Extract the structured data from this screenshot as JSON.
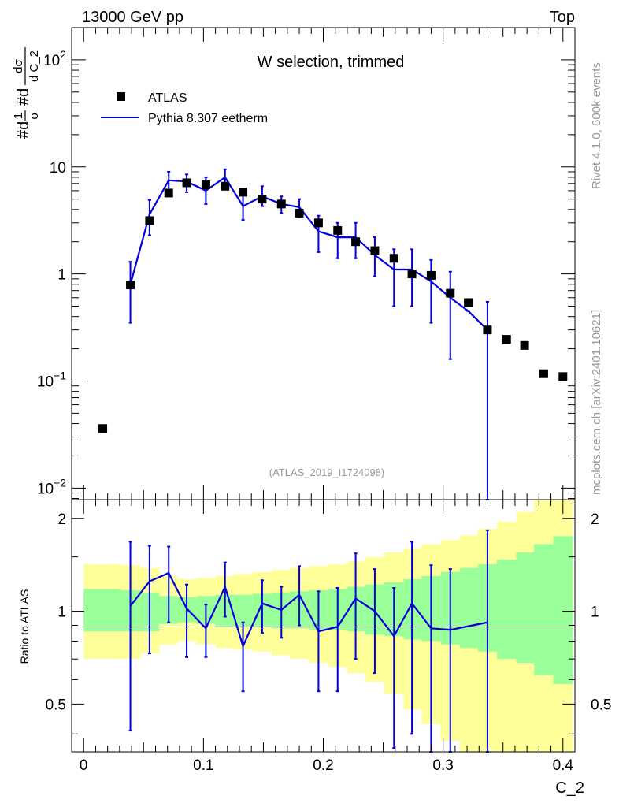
{
  "header": {
    "left": "13000 GeV pp",
    "right": "Top"
  },
  "side_labels": {
    "rivet": "Rivet 4.1.0,  600k events",
    "mcplots": "mcplots.cern.ch [arXiv:2401.10621]"
  },
  "colors": {
    "mc": "#0000dd",
    "data": "#000000",
    "band_inner": "#99ff99",
    "band_outer": "#ffff99"
  },
  "chart_data": [
    {
      "type": "scatter",
      "title": "W selection, trimmed",
      "watermark": "(ATLAS_2019_I1724098)",
      "ylabel": "#d1/σ #d dσ/d C_2",
      "yscale": "log",
      "ylim": [
        0.0078,
        200
      ],
      "xlim": [
        -0.01,
        0.41
      ],
      "yticks": [
        {
          "value": 0.01,
          "base": "10",
          "exp": "−2"
        },
        {
          "value": 0.1,
          "base": "10",
          "exp": "−1"
        },
        {
          "value": 1,
          "base": "1",
          "exp": ""
        },
        {
          "value": 10,
          "base": "10",
          "exp": ""
        },
        {
          "value": 100,
          "base": "10",
          "exp": "2"
        }
      ],
      "legend": {
        "placement": "top-left",
        "data_label": "ATLAS",
        "mc_label": "Pythia 8.307 eetherm"
      },
      "series": [
        {
          "name": "ATLAS",
          "x": [
            0.016,
            0.039,
            0.055,
            0.071,
            0.086,
            0.102,
            0.118,
            0.133,
            0.149,
            0.165,
            0.18,
            0.196,
            0.212,
            0.227,
            0.243,
            0.259,
            0.274,
            0.29,
            0.306,
            0.321,
            0.337,
            0.353,
            0.368,
            0.384,
            0.4
          ],
          "y": [
            0.036,
            0.79,
            3.15,
            5.7,
            7.1,
            6.8,
            6.6,
            5.8,
            5.0,
            4.5,
            3.7,
            3.0,
            2.55,
            2.0,
            1.65,
            1.4,
            1.0,
            0.97,
            0.66,
            0.54,
            0.3,
            0.245,
            0.215,
            0.117,
            0.11
          ]
        },
        {
          "name": "Pythia 8.307 eetherm",
          "x": [
            0.039,
            0.055,
            0.071,
            0.086,
            0.102,
            0.118,
            0.133,
            0.149,
            0.165,
            0.18,
            0.196,
            0.212,
            0.227,
            0.243,
            0.259,
            0.274,
            0.29,
            0.306,
            0.321,
            0.337
          ],
          "y": [
            0.8,
            3.6,
            7.5,
            7.3,
            6.0,
            8.0,
            4.3,
            5.3,
            4.5,
            4.2,
            2.5,
            2.2,
            2.2,
            1.5,
            1.1,
            1.1,
            0.85,
            0.6,
            0.45,
            0.3
          ],
          "err_low": [
            0.35,
            2.3,
            5.9,
            5.8,
            4.5,
            6.3,
            3.2,
            4.3,
            3.7,
            3.4,
            1.6,
            1.4,
            1.4,
            0.95,
            0.5,
            0.5,
            0.35,
            0.16,
            0.45,
            0.0001
          ],
          "err_high": [
            1.3,
            4.9,
            9.0,
            8.5,
            8.0,
            9.5,
            5.8,
            6.6,
            5.3,
            5.0,
            3.5,
            3.0,
            3.0,
            2.2,
            1.7,
            1.7,
            1.35,
            1.05,
            0.45,
            0.55
          ]
        }
      ]
    },
    {
      "type": "line",
      "ylabel": "Ratio to ATLAS",
      "xlabel": "C_2",
      "xlim": [
        -0.01,
        0.41
      ],
      "ylim": [
        0.35,
        2.3
      ],
      "yticks": [
        0.5,
        1,
        2
      ],
      "xticks": [
        0,
        0.1,
        0.2,
        0.3,
        0.4
      ],
      "bands": {
        "edges": [
          0.0,
          0.031,
          0.047,
          0.063,
          0.078,
          0.094,
          0.11,
          0.125,
          0.141,
          0.157,
          0.172,
          0.188,
          0.204,
          0.22,
          0.235,
          0.251,
          0.267,
          0.282,
          0.298,
          0.314,
          0.329,
          0.345,
          0.361,
          0.376,
          0.392,
          0.408
        ],
        "inner_low": [
          0.86,
          0.86,
          0.86,
          0.91,
          0.92,
          0.91,
          0.89,
          0.89,
          0.89,
          0.88,
          0.88,
          0.87,
          0.87,
          0.86,
          0.84,
          0.83,
          0.81,
          0.8,
          0.78,
          0.76,
          0.74,
          0.7,
          0.68,
          0.62,
          0.58
        ],
        "inner_high": [
          1.18,
          1.17,
          1.15,
          1.12,
          1.11,
          1.12,
          1.13,
          1.13,
          1.14,
          1.15,
          1.16,
          1.17,
          1.18,
          1.2,
          1.22,
          1.24,
          1.27,
          1.3,
          1.34,
          1.38,
          1.42,
          1.47,
          1.55,
          1.65,
          1.75
        ],
        "outer_low": [
          0.7,
          0.7,
          0.73,
          0.78,
          0.8,
          0.78,
          0.76,
          0.75,
          0.74,
          0.72,
          0.7,
          0.68,
          0.66,
          0.63,
          0.59,
          0.54,
          0.48,
          0.43,
          0.38,
          0.33,
          0.3,
          0.3,
          0.3,
          0.3,
          0.3
        ],
        "outer_high": [
          1.42,
          1.41,
          1.38,
          1.3,
          1.27,
          1.28,
          1.3,
          1.32,
          1.34,
          1.36,
          1.38,
          1.4,
          1.42,
          1.45,
          1.5,
          1.55,
          1.6,
          1.65,
          1.7,
          1.76,
          1.85,
          1.95,
          2.1,
          2.3,
          2.4
        ]
      },
      "series": [
        {
          "name": "Pythia 8.307 eetherm / ATLAS",
          "x": [
            0.039,
            0.055,
            0.071,
            0.086,
            0.102,
            0.118,
            0.133,
            0.149,
            0.165,
            0.18,
            0.196,
            0.212,
            0.227,
            0.243,
            0.259,
            0.274,
            0.29,
            0.306,
            0.337
          ],
          "y": [
            1.04,
            1.25,
            1.33,
            1.02,
            0.88,
            1.2,
            0.77,
            1.06,
            1.01,
            1.13,
            0.86,
            0.89,
            1.1,
            1.0,
            0.83,
            1.06,
            0.88,
            0.87,
            0.92
          ],
          "err_low": [
            0.41,
            0.73,
            0.92,
            0.71,
            0.71,
            0.96,
            0.55,
            0.85,
            0.82,
            0.9,
            0.55,
            0.55,
            0.7,
            0.63,
            0.36,
            0.4,
            0.33,
            0.15,
            0.3
          ],
          "err_high": [
            1.68,
            1.63,
            1.62,
            1.22,
            1.05,
            1.44,
            0.92,
            1.26,
            1.2,
            1.4,
            1.16,
            1.19,
            1.54,
            1.37,
            1.19,
            1.68,
            1.41,
            1.37,
            1.83
          ]
        }
      ]
    }
  ]
}
